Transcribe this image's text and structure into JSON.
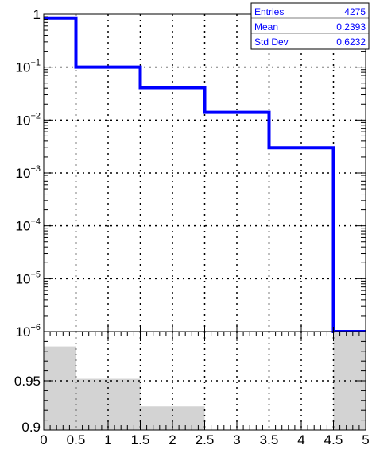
{
  "chart_data": [
    {
      "type": "histogram",
      "title": "",
      "xlabel": "",
      "ylabel": "",
      "y_scale": "log",
      "xlim": [
        0,
        5
      ],
      "ylim": [
        1e-06,
        1
      ],
      "y_ticks": [
        {
          "value": 1,
          "base": "1",
          "exp": ""
        },
        {
          "value": 0.1,
          "base": "10",
          "exp": "−1"
        },
        {
          "value": 0.01,
          "base": "10",
          "exp": "−2"
        },
        {
          "value": 0.001,
          "base": "10",
          "exp": "−3"
        },
        {
          "value": 0.0001,
          "base": "10",
          "exp": "−4"
        },
        {
          "value": 1e-05,
          "base": "10",
          "exp": "−5"
        },
        {
          "value": 1e-06,
          "base": "10",
          "exp": "−6"
        }
      ],
      "grid": true,
      "line_color": "#0000ff",
      "bin_edges": [
        0,
        0.5,
        1.5,
        2.5,
        3.5,
        4.5,
        5
      ],
      "values": [
        0.85,
        0.1,
        0.041,
        0.014,
        0.003,
        1e-06
      ],
      "stats_box": {
        "position": "top-right",
        "rows": [
          {
            "label": "Entries",
            "value": "4275"
          },
          {
            "label": "Mean",
            "value": "0.2393"
          },
          {
            "label": "Std Dev",
            "value": "0.6232"
          }
        ]
      }
    },
    {
      "type": "histogram",
      "title": "",
      "xlabel": "",
      "ylabel": "",
      "xlim": [
        0,
        5
      ],
      "ylim": [
        0.9,
        1.0
      ],
      "x_ticks": [
        "0",
        "0.5",
        "1",
        "1.5",
        "2",
        "2.5",
        "3",
        "3.5",
        "4",
        "4.5",
        "5"
      ],
      "y_ticks": [
        "0.9",
        "0.95"
      ],
      "grid": true,
      "fill_color": "#d3d3d3",
      "bin_edges": [
        0,
        0.5,
        1.5,
        2.5,
        3.5,
        4.5,
        5
      ],
      "values": [
        0.985,
        0.952,
        0.924,
        0.9,
        0.9,
        1.0
      ]
    }
  ]
}
